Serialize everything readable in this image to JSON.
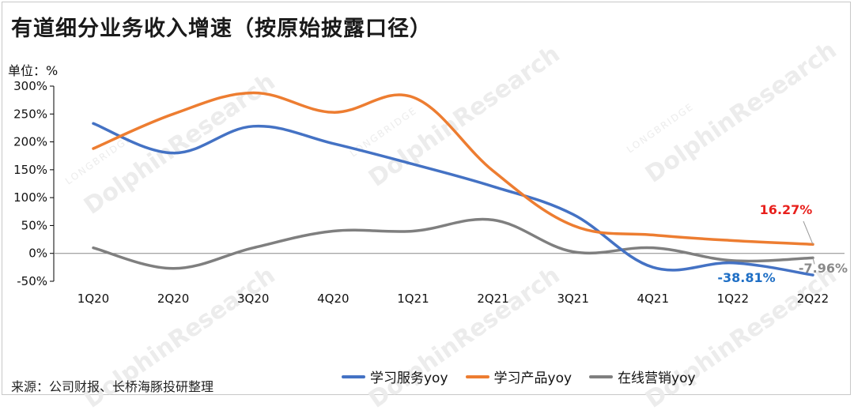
{
  "title": "有道细分业务收入增速（按原始披露口径）",
  "unit_label": "单位：%",
  "source": "来源：公司财报、长桥海豚投研整理",
  "colors": {
    "series": [
      "#4472c4",
      "#ed7d31",
      "#7f7f7f"
    ],
    "label_red": "#e8201c",
    "label_blue": "#1f6fc5",
    "label_gray": "#8a8a8a"
  },
  "chart_data": {
    "type": "line",
    "title": "有道细分业务收入增速（按原始披露口径）",
    "ylabel": "单位：%",
    "categories": [
      "1Q20",
      "2Q20",
      "3Q20",
      "4Q20",
      "1Q21",
      "2Q21",
      "3Q21",
      "4Q21",
      "1Q22",
      "2Q22"
    ],
    "y_ticks": [
      "300%",
      "250%",
      "200%",
      "150%",
      "100%",
      "50%",
      "0%",
      "-50%"
    ],
    "ylim": [
      -50,
      300
    ],
    "grid": false,
    "legend_position": "bottom",
    "series": [
      {
        "name": "学习服务yoy",
        "values": [
          233,
          180,
          228,
          197,
          160,
          120,
          70,
          -25,
          -17,
          -38.81
        ]
      },
      {
        "name": "学习产品yoy",
        "values": [
          188,
          250,
          288,
          253,
          280,
          148,
          50,
          33,
          23,
          16.27
        ]
      },
      {
        "name": "在线营销yoy",
        "values": [
          10,
          -27,
          10,
          40,
          40,
          60,
          3,
          10,
          -13,
          -7.96
        ]
      }
    ],
    "annotations": [
      {
        "text": "16.27%",
        "series": 1,
        "style": "red"
      },
      {
        "text": "-38.81%",
        "series": 0,
        "style": "blue"
      },
      {
        "text": "-7.96%",
        "series": 2,
        "style": "gray"
      }
    ]
  },
  "watermark": {
    "brand": "DolphinResearch",
    "sub": "LONGBRIDGE"
  }
}
